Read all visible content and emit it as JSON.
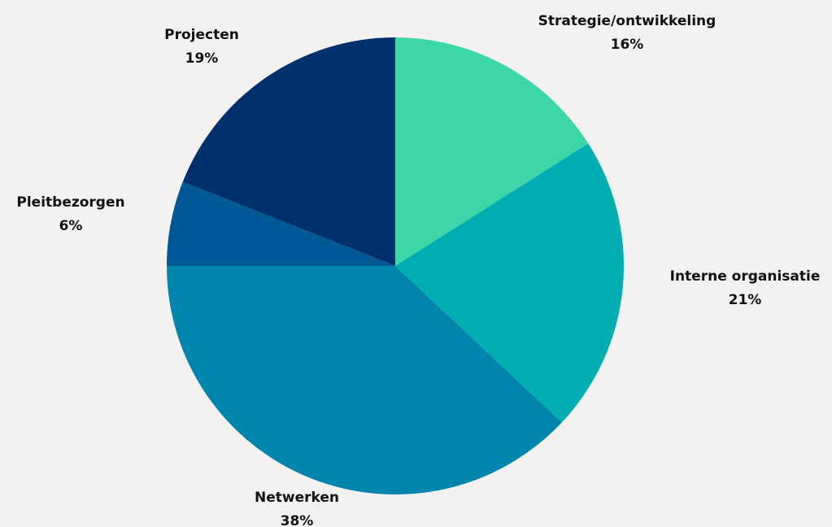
{
  "chart_data": {
    "type": "pie",
    "categories": [
      "Strategie/ontwikkeling",
      "Interne organisatie",
      "Netwerken",
      "Pleitbezorgen",
      "Projecten"
    ],
    "values": [
      16,
      21,
      38,
      6,
      19
    ],
    "value_labels": [
      "16%",
      "21%",
      "38%",
      "6%",
      "19%"
    ],
    "colors": [
      "#3dd6a9",
      "#00adb0",
      "#0086ad",
      "#005896",
      "#00306d"
    ]
  }
}
